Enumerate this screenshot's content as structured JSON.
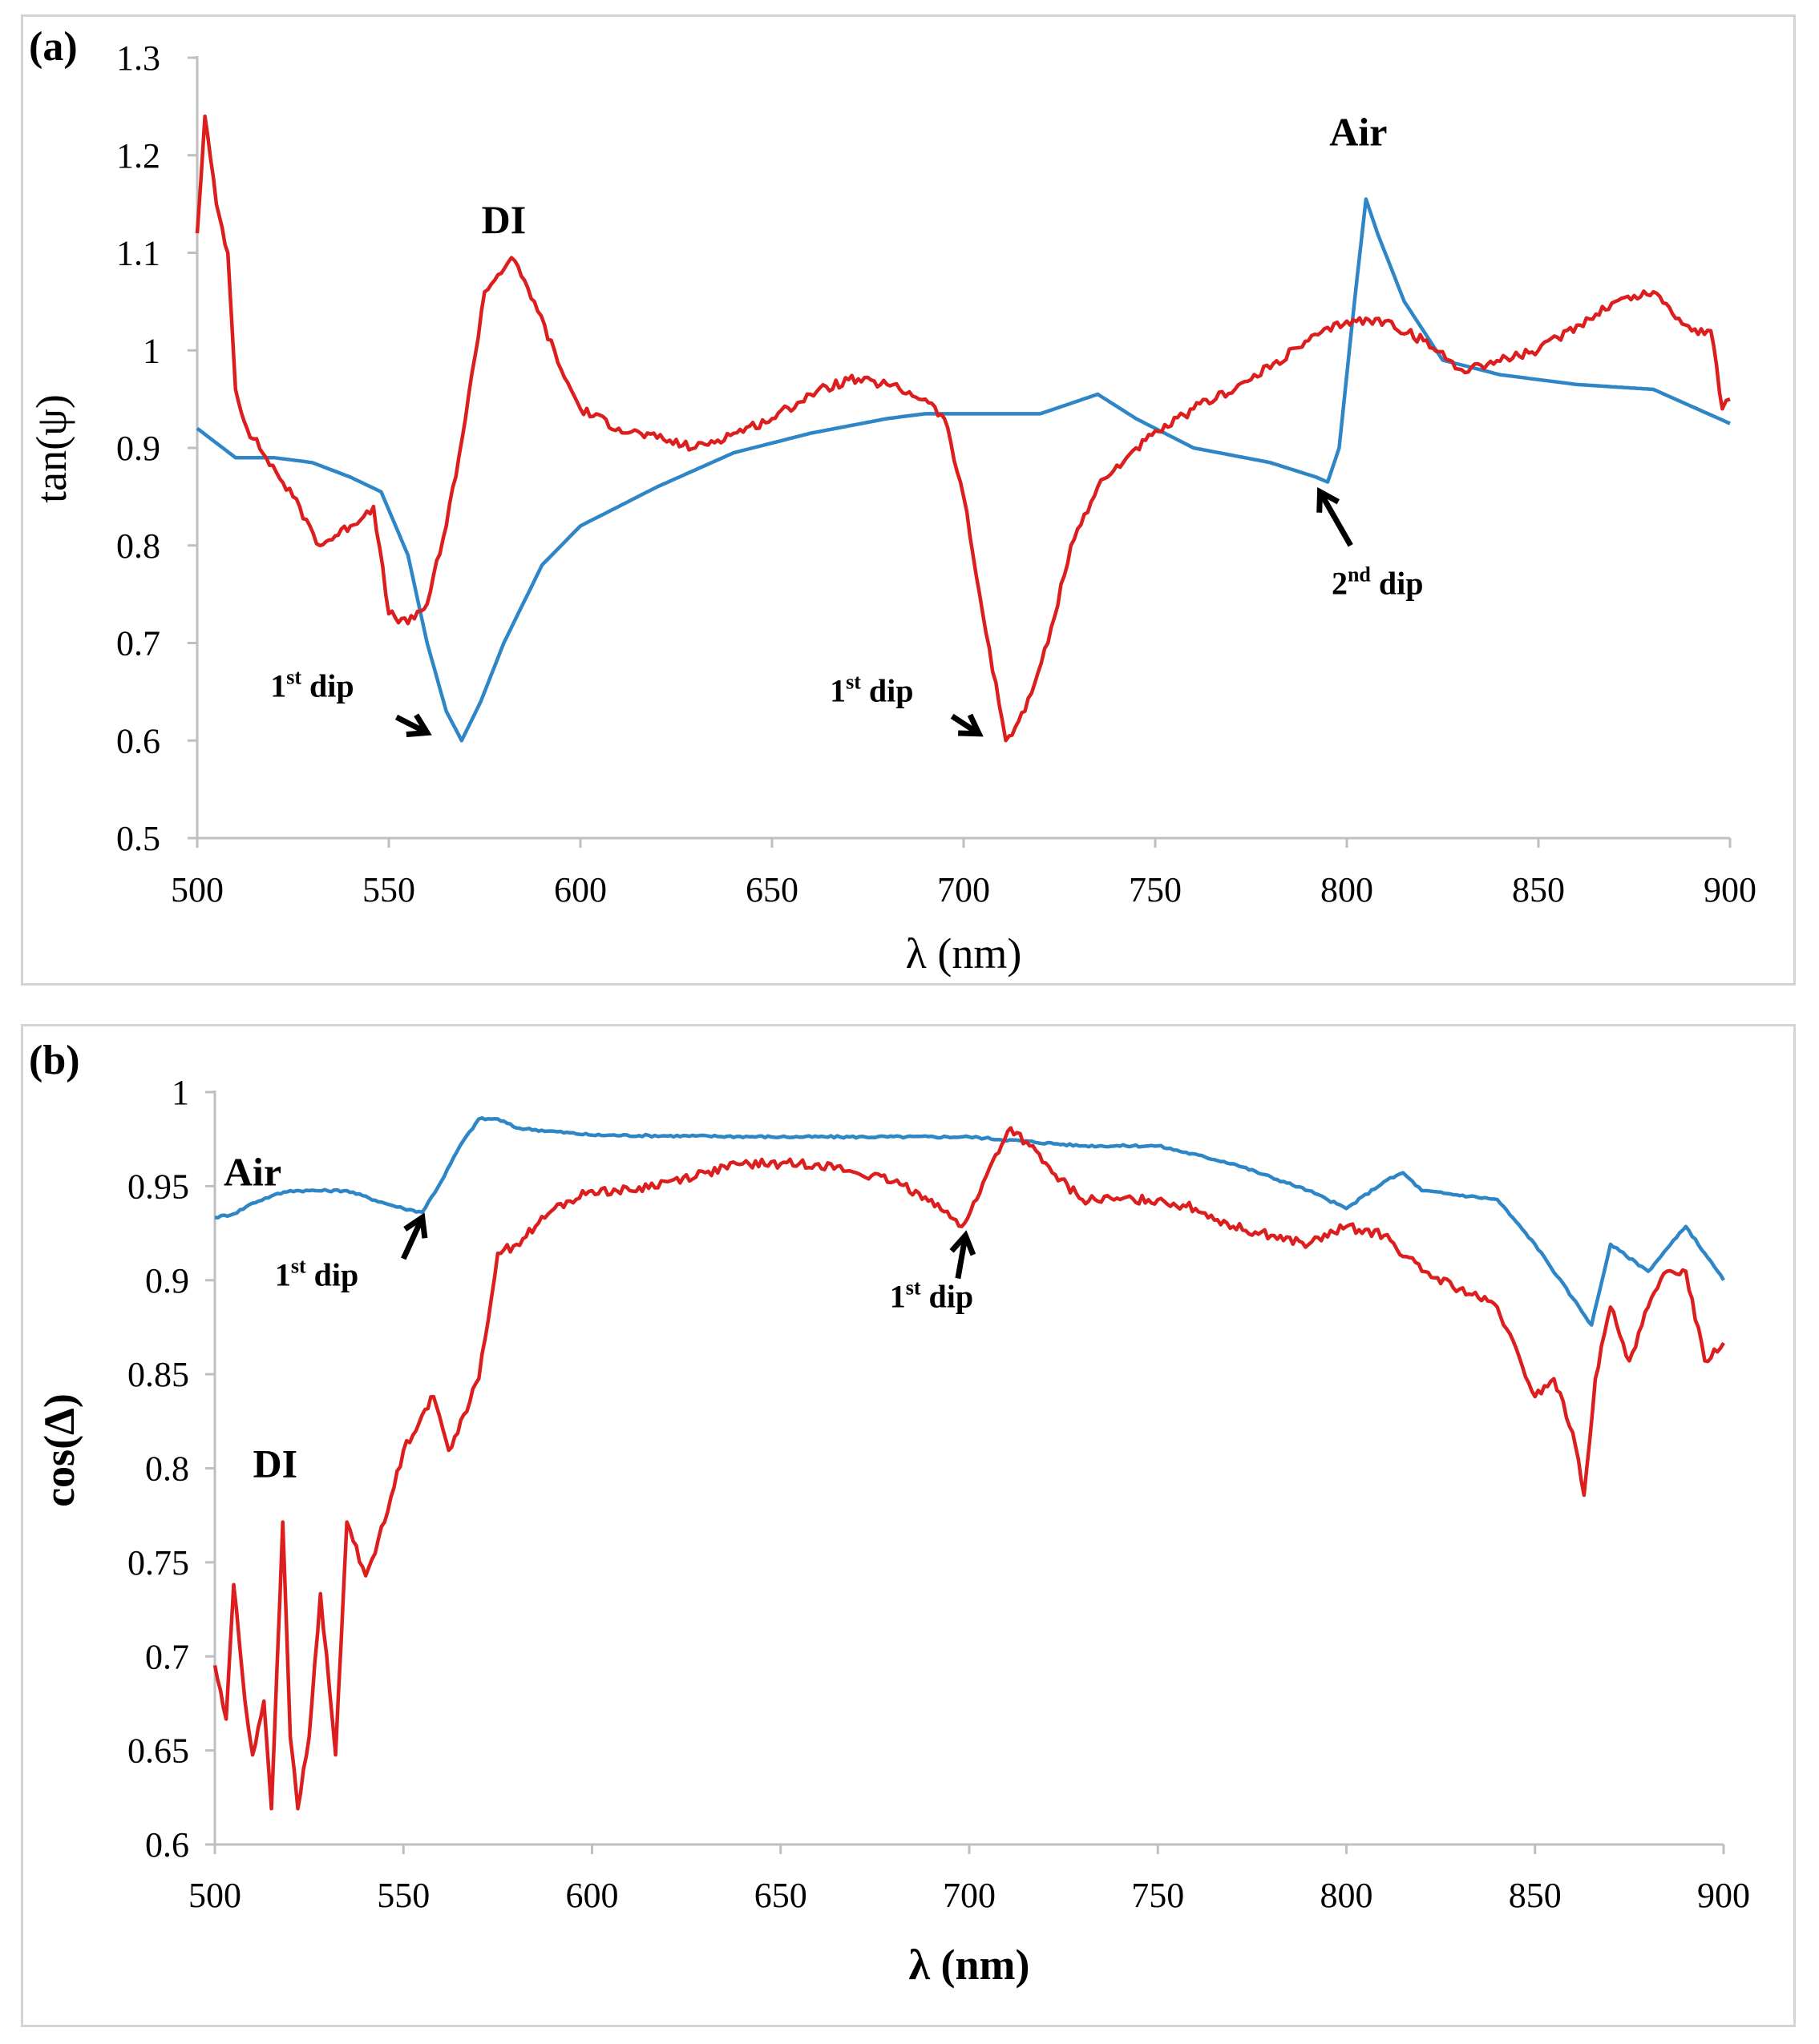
{
  "chart_data": [
    {
      "type": "line",
      "panel_label": "(a)",
      "xlabel": "λ (nm)",
      "ylabel": "tan(ψ)",
      "xlim": [
        500,
        900
      ],
      "ylim": [
        0.5,
        1.3
      ],
      "xticks": [
        "500",
        "550",
        "600",
        "650",
        "700",
        "750",
        "800",
        "850",
        "900"
      ],
      "yticks": [
        "0.5",
        "0.6",
        "0.7",
        "0.8",
        "0.9",
        "1",
        "1.1",
        "1.2",
        "1.3"
      ],
      "series": [
        {
          "name": "Air",
          "color": "#2f86c6",
          "points": [
            [
              500,
              0.92
            ],
            [
              510,
              0.89
            ],
            [
              520,
              0.89
            ],
            [
              530,
              0.885
            ],
            [
              540,
              0.87
            ],
            [
              548,
              0.855
            ],
            [
              555,
              0.79
            ],
            [
              560,
              0.7
            ],
            [
              565,
              0.63
            ],
            [
              569,
              0.6
            ],
            [
              574,
              0.64
            ],
            [
              580,
              0.7
            ],
            [
              590,
              0.78
            ],
            [
              600,
              0.82
            ],
            [
              620,
              0.86
            ],
            [
              640,
              0.895
            ],
            [
              660,
              0.915
            ],
            [
              680,
              0.93
            ],
            [
              690,
              0.935
            ],
            [
              700,
              0.935
            ],
            [
              720,
              0.935
            ],
            [
              735,
              0.955
            ],
            [
              745,
              0.93
            ],
            [
              760,
              0.9
            ],
            [
              780,
              0.885
            ],
            [
              792,
              0.87
            ],
            [
              795,
              0.865
            ],
            [
              798,
              0.9
            ],
            [
              802,
              1.05
            ],
            [
              805,
              1.155
            ],
            [
              808,
              1.12
            ],
            [
              815,
              1.05
            ],
            [
              825,
              0.99
            ],
            [
              840,
              0.975
            ],
            [
              860,
              0.965
            ],
            [
              880,
              0.96
            ],
            [
              900,
              0.925
            ]
          ]
        },
        {
          "name": "DI",
          "color": "#dc1e1e",
          "points": [
            [
              500,
              1.12
            ],
            [
              502,
              1.24
            ],
            [
              505,
              1.15
            ],
            [
              508,
              1.1
            ],
            [
              510,
              0.96
            ],
            [
              513,
              0.92
            ],
            [
              518,
              0.89
            ],
            [
              525,
              0.85
            ],
            [
              532,
              0.8
            ],
            [
              540,
              0.82
            ],
            [
              546,
              0.84
            ],
            [
              550,
              0.73
            ],
            [
              555,
              0.72
            ],
            [
              560,
              0.74
            ],
            [
              565,
              0.82
            ],
            [
              570,
              0.93
            ],
            [
              575,
              1.06
            ],
            [
              582,
              1.095
            ],
            [
              588,
              1.05
            ],
            [
              595,
              0.98
            ],
            [
              600,
              0.94
            ],
            [
              610,
              0.92
            ],
            [
              620,
              0.91
            ],
            [
              630,
              0.9
            ],
            [
              640,
              0.915
            ],
            [
              650,
              0.93
            ],
            [
              660,
              0.955
            ],
            [
              670,
              0.97
            ],
            [
              680,
              0.965
            ],
            [
              690,
              0.95
            ],
            [
              695,
              0.93
            ],
            [
              700,
              0.85
            ],
            [
              705,
              0.73
            ],
            [
              711,
              0.6
            ],
            [
              716,
              0.63
            ],
            [
              722,
              0.7
            ],
            [
              728,
              0.8
            ],
            [
              735,
              0.86
            ],
            [
              745,
              0.9
            ],
            [
              760,
              0.94
            ],
            [
              775,
              0.97
            ],
            [
              790,
              1.01
            ],
            [
              800,
              1.03
            ],
            [
              810,
              1.03
            ],
            [
              820,
              1.01
            ],
            [
              830,
              0.98
            ],
            [
              850,
              1.0
            ],
            [
              870,
              1.05
            ],
            [
              880,
              1.06
            ],
            [
              890,
              1.02
            ],
            [
              895,
              1.02
            ],
            [
              898,
              0.94
            ],
            [
              900,
              0.95
            ]
          ]
        }
      ],
      "annotations": [
        {
          "text": "Air",
          "x": 803,
          "y": 1.21
        },
        {
          "text": "DI",
          "x": 580,
          "y": 1.12
        },
        {
          "text": "1",
          "sup": "st",
          "rest": " dip",
          "x": 530,
          "y": 0.645
        },
        {
          "text": "1",
          "sup": "st",
          "rest": " dip",
          "x": 676,
          "y": 0.64
        },
        {
          "text": "2",
          "sup": "nd",
          "rest": " dip",
          "x": 808,
          "y": 0.75
        }
      ]
    },
    {
      "type": "line",
      "panel_label": "(b)",
      "xlabel": "λ (nm)",
      "ylabel": "cos(Δ)",
      "xlim": [
        500,
        900
      ],
      "ylim": [
        0.6,
        1.02
      ],
      "xticks": [
        "500",
        "550",
        "600",
        "650",
        "700",
        "750",
        "800",
        "850",
        "900"
      ],
      "yticks": [
        "0.6",
        "0.65",
        "0.7",
        "0.75",
        "0.8",
        "0.85",
        "0.9",
        "0.95",
        "1"
      ],
      "series": [
        {
          "name": "Air",
          "color": "#2f86c6",
          "points": [
            [
              500,
              0.95
            ],
            [
              505,
              0.952
            ],
            [
              510,
              0.958
            ],
            [
              515,
              0.962
            ],
            [
              520,
              0.965
            ],
            [
              525,
              0.965
            ],
            [
              535,
              0.965
            ],
            [
              545,
              0.958
            ],
            [
              550,
              0.955
            ],
            [
              555,
              0.953
            ],
            [
              560,
              0.97
            ],
            [
              565,
              0.99
            ],
            [
              570,
              1.005
            ],
            [
              575,
              1.005
            ],
            [
              580,
              1.0
            ],
            [
              600,
              0.996
            ],
            [
              650,
              0.995
            ],
            [
              700,
              0.995
            ],
            [
              730,
              0.99
            ],
            [
              750,
              0.99
            ],
            [
              770,
              0.98
            ],
            [
              790,
              0.965
            ],
            [
              800,
              0.955
            ],
            [
              810,
              0.97
            ],
            [
              815,
              0.975
            ],
            [
              820,
              0.965
            ],
            [
              840,
              0.96
            ],
            [
              850,
              0.935
            ],
            [
              860,
              0.905
            ],
            [
              865,
              0.89
            ],
            [
              870,
              0.935
            ],
            [
              880,
              0.92
            ],
            [
              890,
              0.945
            ],
            [
              895,
              0.93
            ],
            [
              900,
              0.915
            ]
          ]
        },
        {
          "name": "DI",
          "color": "#dc1e1e",
          "points": [
            [
              500,
              0.7
            ],
            [
              503,
              0.67
            ],
            [
              505,
              0.745
            ],
            [
              508,
              0.68
            ],
            [
              510,
              0.65
            ],
            [
              513,
              0.68
            ],
            [
              515,
              0.62
            ],
            [
              518,
              0.78
            ],
            [
              520,
              0.66
            ],
            [
              522,
              0.62
            ],
            [
              525,
              0.66
            ],
            [
              528,
              0.74
            ],
            [
              532,
              0.65
            ],
            [
              535,
              0.78
            ],
            [
              540,
              0.75
            ],
            [
              545,
              0.78
            ],
            [
              550,
              0.82
            ],
            [
              555,
              0.84
            ],
            [
              558,
              0.85
            ],
            [
              562,
              0.82
            ],
            [
              566,
              0.84
            ],
            [
              570,
              0.86
            ],
            [
              575,
              0.93
            ],
            [
              580,
              0.935
            ],
            [
              585,
              0.945
            ],
            [
              590,
              0.955
            ],
            [
              600,
              0.965
            ],
            [
              610,
              0.965
            ],
            [
              620,
              0.97
            ],
            [
              630,
              0.975
            ],
            [
              640,
              0.98
            ],
            [
              650,
              0.98
            ],
            [
              660,
              0.98
            ],
            [
              670,
              0.975
            ],
            [
              680,
              0.97
            ],
            [
              690,
              0.96
            ],
            [
              695,
              0.95
            ],
            [
              698,
              0.945
            ],
            [
              702,
              0.96
            ],
            [
              707,
              0.985
            ],
            [
              711,
              1.0
            ],
            [
              716,
              0.99
            ],
            [
              722,
              0.975
            ],
            [
              730,
              0.96
            ],
            [
              740,
              0.96
            ],
            [
              750,
              0.96
            ],
            [
              760,
              0.955
            ],
            [
              770,
              0.945
            ],
            [
              780,
              0.94
            ],
            [
              790,
              0.935
            ],
            [
              800,
              0.945
            ],
            [
              810,
              0.94
            ],
            [
              820,
              0.92
            ],
            [
              830,
              0.91
            ],
            [
              840,
              0.9
            ],
            [
              850,
              0.85
            ],
            [
              855,
              0.86
            ],
            [
              860,
              0.83
            ],
            [
              863,
              0.795
            ],
            [
              866,
              0.86
            ],
            [
              870,
              0.9
            ],
            [
              875,
              0.87
            ],
            [
              880,
              0.9
            ],
            [
              885,
              0.92
            ],
            [
              890,
              0.92
            ],
            [
              895,
              0.87
            ],
            [
              900,
              0.88
            ]
          ]
        }
      ],
      "annotations": [
        {
          "text": "Air",
          "x": 510,
          "y": 0.968
        },
        {
          "text": "DI",
          "x": 516,
          "y": 0.805
        },
        {
          "text": "1",
          "sup": "st",
          "rest": " dip",
          "x": 527,
          "y": 0.912
        },
        {
          "text": "1",
          "sup": "st",
          "rest": " dip",
          "x": 690,
          "y": 0.9
        }
      ]
    }
  ]
}
